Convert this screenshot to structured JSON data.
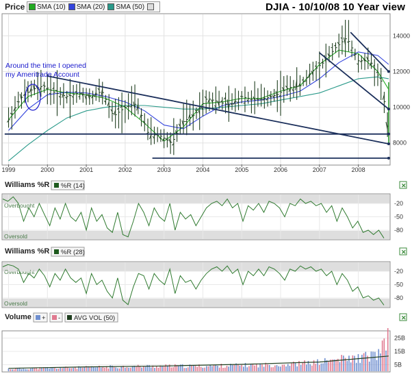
{
  "header": {
    "price_label": "Price",
    "title": "DJIA - 10/10/08 10 Year view",
    "price_legend": [
      {
        "label": "SMA (10)",
        "color": "#22aa22"
      },
      {
        "label": "SMA (20)",
        "color": "#3344dd"
      },
      {
        "label": "SMA (50)",
        "color": "#2a9a8a"
      },
      {
        "label": "",
        "color": "#dddddd"
      }
    ]
  },
  "annotation": {
    "line1": "Around the time I opened",
    "line2": "my Ameritrade Account"
  },
  "panels": {
    "wr14": {
      "title": "Williams %R",
      "legend": "%R (14)",
      "overbought": "Overbought",
      "oversold": "Oversold"
    },
    "wr28": {
      "title": "Williams %R",
      "legend": "%R (28)",
      "overbought": "Overbought",
      "oversold": "Oversold"
    },
    "volume": {
      "title": "Volume",
      "plus": "+",
      "minus": "-",
      "avg": "AVG VOL (50)"
    }
  },
  "colors": {
    "price_bar": "#1e3d1e",
    "sma10": "#22aa22",
    "sma20": "#3344dd",
    "sma50": "#2a9a8a",
    "trendline": "#1a2e5a",
    "wr_line": "#2f7a2f",
    "vol_up": "#6f8fd0",
    "vol_down": "#e07a90",
    "avg_vol": "#1e3d1e",
    "annotation": "#1a1acc"
  },
  "chart_data": [
    {
      "type": "line",
      "name_in_chart": "Price",
      "x_axis_ticks": [
        "1999",
        "2000",
        "2001",
        "2002",
        "2003",
        "2004",
        "2005",
        "2006",
        "2007",
        "2008"
      ],
      "y_axis_ticks": [
        8000,
        10000,
        12000,
        14000
      ],
      "ylim": [
        6800,
        15200
      ],
      "series": [
        {
          "name": "SMA (10)",
          "x": [
            1999.0,
            1999.5,
            2000.0,
            2000.5,
            2001.0,
            2001.5,
            2002.0,
            2002.5,
            2003.0,
            2003.5,
            2004.0,
            2004.5,
            2005.0,
            2005.5,
            2006.0,
            2006.5,
            2007.0,
            2007.5,
            2008.0,
            2008.5,
            2008.78
          ],
          "y": [
            9300,
            10600,
            11000,
            10800,
            10700,
            10500,
            10000,
            9100,
            8100,
            8900,
            10200,
            10300,
            10500,
            10500,
            10900,
            11200,
            12400,
            13200,
            13000,
            12000,
            11000
          ]
        },
        {
          "name": "SMA (20)",
          "x": [
            1999.0,
            1999.5,
            2000.0,
            2000.5,
            2001.0,
            2001.5,
            2002.0,
            2002.5,
            2003.0,
            2003.5,
            2004.0,
            2004.5,
            2005.0,
            2005.5,
            2006.0,
            2006.5,
            2007.0,
            2007.5,
            2008.0,
            2008.5,
            2008.78
          ],
          "y": [
            8700,
            9900,
            10700,
            10850,
            10800,
            10600,
            10300,
            9800,
            9000,
            8800,
            9500,
            10100,
            10300,
            10400,
            10600,
            10900,
            11600,
            12500,
            13100,
            12900,
            12400
          ]
        },
        {
          "name": "SMA (50)",
          "x": [
            1999.0,
            1999.5,
            2000.0,
            2000.5,
            2001.0,
            2001.5,
            2002.0,
            2002.5,
            2003.0,
            2003.5,
            2004.0,
            2004.5,
            2005.0,
            2005.5,
            2006.0,
            2006.5,
            2007.0,
            2007.5,
            2008.0,
            2008.5,
            2008.78
          ],
          "y": [
            7000,
            7900,
            8700,
            9400,
            9800,
            10000,
            10100,
            10100,
            10000,
            9900,
            9900,
            10000,
            10100,
            10200,
            10400,
            10600,
            10800,
            11200,
            11600,
            11700,
            11600
          ]
        },
        {
          "name": "Price",
          "x": [
            1999.0,
            1999.3,
            1999.6,
            1999.9,
            2000.2,
            2000.5,
            2000.8,
            2001.1,
            2001.4,
            2001.7,
            2002.0,
            2002.3,
            2002.6,
            2002.9,
            2003.2,
            2003.5,
            2003.8,
            2004.1,
            2004.4,
            2004.7,
            2005.0,
            2005.3,
            2005.6,
            2005.9,
            2006.2,
            2006.5,
            2006.8,
            2007.1,
            2007.4,
            2007.7,
            2008.0,
            2008.3,
            2008.6,
            2008.78
          ],
          "y": [
            9300,
            10500,
            11000,
            11200,
            10800,
            10600,
            10800,
            10600,
            10900,
            9500,
            10000,
            10200,
            8500,
            8400,
            8000,
            9200,
            9600,
            10500,
            10300,
            10100,
            10600,
            10400,
            10500,
            10700,
            11100,
            11200,
            12000,
            12500,
            13300,
            13900,
            12600,
            12600,
            11400,
            8450
          ]
        }
      ]
    },
    {
      "type": "line",
      "name_in_chart": "Williams %R (14)",
      "y_axis_ticks": [
        -20,
        -50,
        -80
      ],
      "ylim": [
        -100,
        0
      ],
      "series": [
        {
          "name": "%R (14)",
          "y": [
            -10,
            -15,
            -5,
            -20,
            -60,
            -30,
            -50,
            -20,
            -45,
            -70,
            -30,
            -55,
            -20,
            -50,
            -60,
            -40,
            -80,
            -30,
            -60,
            -45,
            -75,
            -85,
            -40,
            -90,
            -95,
            -60,
            -20,
            -40,
            -70,
            -30,
            -50,
            -60,
            -20,
            -80,
            -40,
            -55,
            -45,
            -70,
            -50,
            -30,
            -20,
            -15,
            -25,
            -10,
            -30,
            -20,
            -60,
            -25,
            -35,
            -20,
            -40,
            -15,
            -20,
            -30,
            -50,
            -20,
            -25,
            -10,
            -20,
            -15,
            -25,
            -20,
            -40,
            -25,
            -60,
            -30,
            -50,
            -75,
            -60,
            -85,
            -80,
            -90,
            -80,
            -98
          ]
        }
      ]
    },
    {
      "type": "line",
      "name_in_chart": "Williams %R (28)",
      "y_axis_ticks": [
        -20,
        -50,
        -80
      ],
      "ylim": [
        -100,
        0
      ],
      "series": [
        {
          "name": "%R (28)",
          "y": [
            -10,
            -5,
            -8,
            -15,
            -45,
            -25,
            -35,
            -15,
            -30,
            -55,
            -25,
            -40,
            -15,
            -35,
            -45,
            -35,
            -70,
            -25,
            -50,
            -40,
            -65,
            -80,
            -35,
            -85,
            -95,
            -55,
            -25,
            -30,
            -60,
            -25,
            -40,
            -50,
            -15,
            -70,
            -30,
            -45,
            -40,
            -60,
            -40,
            -25,
            -15,
            -10,
            -20,
            -8,
            -25,
            -15,
            -50,
            -20,
            -30,
            -15,
            -30,
            -10,
            -15,
            -25,
            -40,
            -15,
            -20,
            -8,
            -15,
            -10,
            -20,
            -15,
            -30,
            -20,
            -50,
            -25,
            -40,
            -65,
            -55,
            -80,
            -75,
            -85,
            -80,
            -96
          ]
        }
      ]
    },
    {
      "type": "bar",
      "name_in_chart": "Volume",
      "y_axis_ticks": [
        "25B",
        "15B",
        "5B"
      ],
      "ylim": [
        0,
        30
      ],
      "series": [
        {
          "name": "AVG VOL (50)",
          "x": [
            1999.0,
            2001.0,
            2003.0,
            2005.0,
            2007.0,
            2008.0,
            2008.78
          ],
          "y": [
            2.2,
            3.3,
            4.0,
            5.2,
            7.0,
            9.5,
            11.5
          ]
        },
        {
          "name": "Volume",
          "x": [
            1999.0,
            2000.0,
            2001.0,
            2002.0,
            2003.0,
            2004.0,
            2005.0,
            2006.0,
            2007.0,
            2007.5,
            2008.0,
            2008.5,
            2008.7,
            2008.78
          ],
          "y": [
            2.0,
            2.7,
            3.2,
            4.0,
            4.3,
            4.3,
            5.0,
            5.5,
            7.5,
            10.0,
            11.0,
            14.0,
            22.0,
            30.0
          ]
        }
      ]
    }
  ]
}
